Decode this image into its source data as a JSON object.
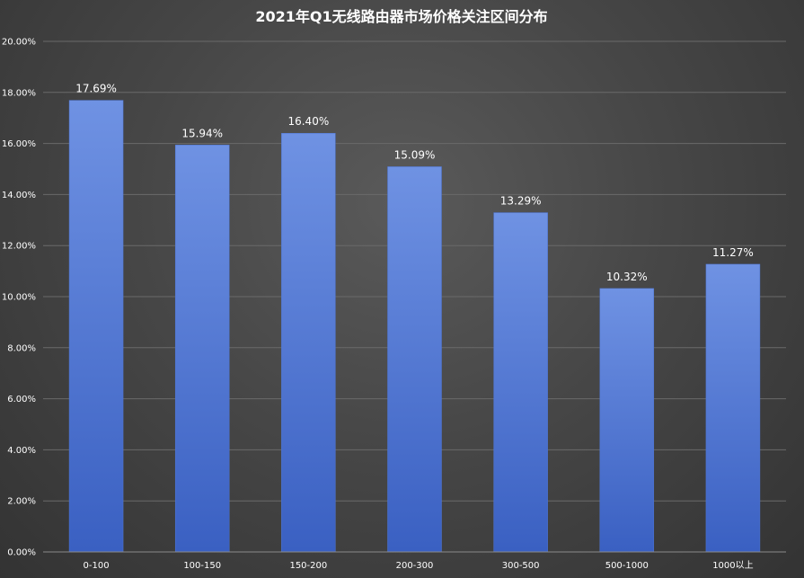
{
  "chart_data": {
    "type": "bar",
    "title": "2021年Q1无线路由器市场价格关注区间分布",
    "xlabel": "",
    "ylabel": "",
    "categories": [
      "0-100",
      "100-150",
      "150-200",
      "200-300",
      "300-500",
      "500-1000",
      "1000以上"
    ],
    "values": [
      17.69,
      15.94,
      16.4,
      15.09,
      13.29,
      10.32,
      11.27
    ],
    "data_labels": [
      "17.69%",
      "15.94%",
      "16.40%",
      "15.09%",
      "13.29%",
      "10.32%",
      "11.27%"
    ],
    "ylim": [
      0,
      20
    ],
    "yticks": [
      "0.00%",
      "2.00%",
      "4.00%",
      "6.00%",
      "8.00%",
      "10.00%",
      "12.00%",
      "14.00%",
      "16.00%",
      "18.00%",
      "20.00%"
    ],
    "grid": true,
    "legend": "none",
    "colors": {
      "bar": "#4f77d6",
      "bar_light": "#6f92e3",
      "bar_dark": "#3a60c2"
    }
  }
}
